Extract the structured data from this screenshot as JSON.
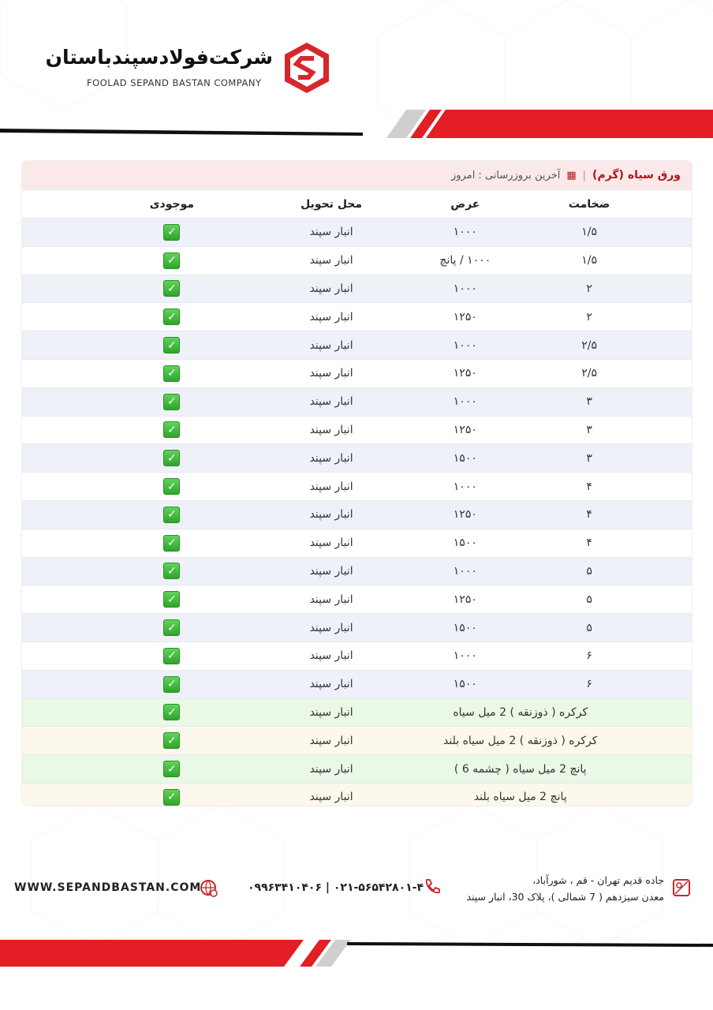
{
  "header": {
    "company_fa": "شرکت‌فولادسپندباستان",
    "company_en": "FOOLAD SEPAND BASTAN COMPANY",
    "logo_letter": "S"
  },
  "colors": {
    "brand_red": "#e31e24",
    "available": "#2ea52a"
  },
  "card": {
    "title": "ورق سیاه (گرم)",
    "separator": "|",
    "calendar_icon": "calendar-icon",
    "update_label": "آخرین بروزرسانی : امروز"
  },
  "table": {
    "columns": [
      "ضخامت",
      "عرض",
      "محل تحویل",
      "موجودی"
    ],
    "rows": [
      {
        "thickness": "۱/۵",
        "width": "۱۰۰۰",
        "location": "انبار سپند",
        "available": true
      },
      {
        "thickness": "۱/۵",
        "width": "۱۰۰۰ / پانچ",
        "location": "انبار سپند",
        "available": true
      },
      {
        "thickness": "۲",
        "width": "۱۰۰۰",
        "location": "انبار سپند",
        "available": true
      },
      {
        "thickness": "۲",
        "width": "۱۲۵۰",
        "location": "انبار سپند",
        "available": true
      },
      {
        "thickness": "۲/۵",
        "width": "۱۰۰۰",
        "location": "انبار سپند",
        "available": true
      },
      {
        "thickness": "۲/۵",
        "width": "۱۲۵۰",
        "location": "انبار سپند",
        "available": true
      },
      {
        "thickness": "۳",
        "width": "۱۰۰۰",
        "location": "انبار سپند",
        "available": true
      },
      {
        "thickness": "۳",
        "width": "۱۲۵۰",
        "location": "انبار سپند",
        "available": true
      },
      {
        "thickness": "۳",
        "width": "۱۵۰۰",
        "location": "انبار سپند",
        "available": true
      },
      {
        "thickness": "۴",
        "width": "۱۰۰۰",
        "location": "انبار سپند",
        "available": true
      },
      {
        "thickness": "۴",
        "width": "۱۲۵۰",
        "location": "انبار سپند",
        "available": true
      },
      {
        "thickness": "۴",
        "width": "۱۵۰۰",
        "location": "انبار سپند",
        "available": true
      },
      {
        "thickness": "۵",
        "width": "۱۰۰۰",
        "location": "انبار سپند",
        "available": true
      },
      {
        "thickness": "۵",
        "width": "۱۲۵۰",
        "location": "انبار سپند",
        "available": true
      },
      {
        "thickness": "۵",
        "width": "۱۵۰۰",
        "location": "انبار سپند",
        "available": true
      },
      {
        "thickness": "۶",
        "width": "۱۰۰۰",
        "location": "انبار سپند",
        "available": true
      },
      {
        "thickness": "۶",
        "width": "۱۵۰۰",
        "location": "انبار سپند",
        "available": true
      }
    ],
    "special_rows": [
      {
        "product": "کرکره ( ذوزنقه ) 2 میل سیاه",
        "location": "انبار سپند",
        "available": true,
        "tint": "g"
      },
      {
        "product": "کرکره ( ذوزنقه ) 2 میل سیاه بلند",
        "location": "انبار سپند",
        "available": true,
        "tint": "y"
      },
      {
        "product": "پانچ 2 میل سیاه ( چشمه 6 )",
        "location": "انبار سپند",
        "available": true,
        "tint": "g"
      },
      {
        "product": "پانچ 2 میل سیاه بلند",
        "location": "انبار سپند",
        "available": true,
        "tint": "y"
      }
    ]
  },
  "footer": {
    "website": "WWW.SEPANDBASTAN.COM",
    "phone": "۰۹۹۶۳۴۱۰۴۰۶ | ۰۲۱-۵۶۵۴۲۸۰۱-۴",
    "address_line1": "جاده قدیم تهران - قم ، شورآباد،",
    "address_line2": "معدن سیزدهم ( 7 شمالی )، پلاک 30، انبار سپند"
  }
}
